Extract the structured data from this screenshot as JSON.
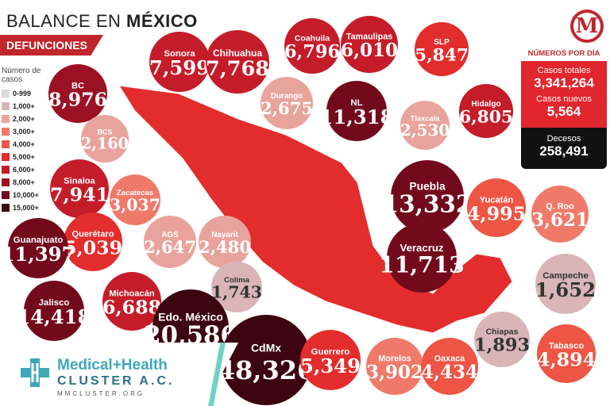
{
  "header": {
    "title_part1": "BALANCE EN ",
    "title_part2": "MÉXICO",
    "subtitle": "DEFUNCIONES"
  },
  "legend": {
    "title": "Número de casos",
    "bins": [
      {
        "label": "0-999",
        "color": "#dcdcdc"
      },
      {
        "label": "1,000+",
        "color": "#d9b5b7"
      },
      {
        "label": "2,000+",
        "color": "#e8a49c"
      },
      {
        "label": "3,000+",
        "color": "#f07a6a"
      },
      {
        "label": "4,000+",
        "color": "#ee5545"
      },
      {
        "label": "5,000+",
        "color": "#e32c2c"
      },
      {
        "label": "6,000+",
        "color": "#c51c2a"
      },
      {
        "label": "8,000+",
        "color": "#9c1024"
      },
      {
        "label": "10,000+",
        "color": "#730a1c"
      },
      {
        "label": "15,000+",
        "color": "#3d0510"
      }
    ]
  },
  "logo_letter": "M",
  "stats_panel": {
    "header": "NÚMEROS POR DÍA",
    "total_label": "Casos totales",
    "total_value": "3,341,264",
    "new_label": "Casos nuevos",
    "new_value": "5,564",
    "deaths_label": "Decesos",
    "deaths_value": "258,491"
  },
  "brand": {
    "name": "Medical+Health",
    "sub": "CLUSTER A.C.",
    "url": "MMCLUSTER.ORG"
  },
  "colors": {
    "brand_red": "#c1262d",
    "map_base": "#e32c2c"
  },
  "chart_data": {
    "type": "bubble-map",
    "title": "BALANCE EN MÉXICO",
    "subtitle": "DEFUNCIONES",
    "legend_placement": "left",
    "series": [
      {
        "name": "",
        "values": [
          8976,
          2160,
          7941,
          7599,
          7768,
          2675,
          6796,
          6010,
          5847,
          11318,
          2530,
          6805,
          13332,
          4995,
          3621,
          3037,
          5039,
          11397,
          2647,
          2480,
          11713,
          1652,
          14418,
          6688,
          1743,
          20586,
          48326,
          5349,
          3902,
          4434,
          1893,
          4894
        ]
      }
    ],
    "categories": [
      "BC",
      "BCS",
      "Sinaloa",
      "Sonora",
      "Chihuahua",
      "Durango",
      "Coahuila",
      "Tamaulipas",
      "SLP",
      "NL",
      "Tlaxcala",
      "Hidalgo",
      "Puebla",
      "Yucatán",
      "Q. Roo",
      "Zacatecas",
      "Querétaro",
      "Guanajuato",
      "AGS",
      "Nayarit",
      "Veracruz",
      "Campeche",
      "Jalisco",
      "Michoacán",
      "Colima",
      "Edo. México",
      "CdMx",
      "Guerrero",
      "Morelos",
      "Oaxaca",
      "Chiapas",
      "Tabasco"
    ],
    "bubbles": [
      {
        "name": "BC",
        "label": "8,976",
        "value": 8976
      },
      {
        "name": "BCS",
        "label": "2,160",
        "value": 2160
      },
      {
        "name": "Sinaloa",
        "label": "7,941",
        "value": 7941
      },
      {
        "name": "Sonora",
        "label": "7,599",
        "value": 7599
      },
      {
        "name": "Chihuahua",
        "label": "7,768",
        "value": 7768
      },
      {
        "name": "Durango",
        "label": "2,675",
        "value": 2675
      },
      {
        "name": "Coahuila",
        "label": "6,796",
        "value": 6796
      },
      {
        "name": "Tamaulipas",
        "label": "6,010",
        "value": 6010
      },
      {
        "name": "SLP",
        "label": "5,847",
        "value": 5847
      },
      {
        "name": "NL",
        "label": "11,318",
        "value": 11318
      },
      {
        "name": "Tlaxcala",
        "label": "2,530",
        "value": 2530
      },
      {
        "name": "Hidalgo",
        "label": "6,805",
        "value": 6805
      },
      {
        "name": "Puebla",
        "label": "13,332",
        "value": 13332
      },
      {
        "name": "Yucatán",
        "label": "4,995",
        "value": 4995
      },
      {
        "name": "Q. Roo",
        "label": "3,621",
        "value": 3621
      },
      {
        "name": "Zacatecas",
        "label": "3,037",
        "value": 3037
      },
      {
        "name": "Querétaro",
        "label": "5,039",
        "value": 5039
      },
      {
        "name": "Guanajuato",
        "label": "11,397",
        "value": 11397
      },
      {
        "name": "AGS",
        "label": "2,647",
        "value": 2647
      },
      {
        "name": "Nayarit",
        "label": "2,480",
        "value": 2480
      },
      {
        "name": "Veracruz",
        "label": "11,713",
        "value": 11713
      },
      {
        "name": "Campeche",
        "label": "1,652",
        "value": 1652
      },
      {
        "name": "Jalisco",
        "label": "14,418",
        "value": 14418
      },
      {
        "name": "Michoacán",
        "label": "6,688",
        "value": 6688
      },
      {
        "name": "Colima",
        "label": "1,743",
        "value": 1743
      },
      {
        "name": "Edo. México",
        "label": "20,586",
        "value": 20586
      },
      {
        "name": "CdMx",
        "label": "48,326",
        "value": 48326
      },
      {
        "name": "Guerrero",
        "label": "5,349",
        "value": 5349
      },
      {
        "name": "Morelos",
        "label": "3,902",
        "value": 3902
      },
      {
        "name": "Oaxaca",
        "label": "4,434",
        "value": 4434
      },
      {
        "name": "Chiapas",
        "label": "1,893",
        "value": 1893
      },
      {
        "name": "Tabasco",
        "label": "4,894",
        "value": 4894
      }
    ]
  }
}
